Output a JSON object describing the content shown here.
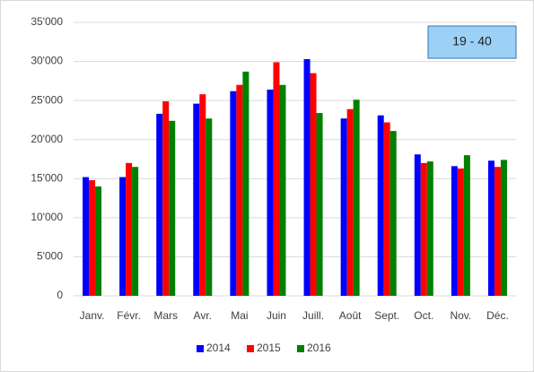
{
  "chart_data": {
    "type": "bar",
    "annotation": "19 - 40",
    "categories": [
      "Janv.",
      "Févr.",
      "Mars",
      "Avr.",
      "Mai",
      "Juin",
      "Juill.",
      "Août",
      "Sept.",
      "Oct.",
      "Nov.",
      "Déc."
    ],
    "series": [
      {
        "name": "2014",
        "color": "#0000ff",
        "values": [
          15200,
          15200,
          23300,
          24600,
          26200,
          26400,
          30300,
          22700,
          23100,
          18100,
          16600,
          17300
        ]
      },
      {
        "name": "2015",
        "color": "#ff0000",
        "values": [
          14800,
          17000,
          24900,
          25800,
          27000,
          29900,
          28500,
          23900,
          22200,
          17000,
          16300,
          16500
        ]
      },
      {
        "name": "2016",
        "color": "#008000",
        "values": [
          14000,
          16500,
          22400,
          22700,
          28700,
          27000,
          23400,
          25100,
          21100,
          17200,
          18000,
          17400
        ]
      }
    ],
    "ylim": [
      0,
      35000
    ],
    "yticks": [
      0,
      {
        "value": 5000,
        "label": "5'000"
      },
      {
        "value": 10000,
        "label": "10'000"
      },
      {
        "value": 15000,
        "label": "15'000"
      },
      {
        "value": 20000,
        "label": "20'000"
      },
      {
        "value": 25000,
        "label": "25'000"
      },
      {
        "value": 30000,
        "label": "30'000"
      },
      {
        "value": 35000,
        "label": "35'000"
      }
    ],
    "grid": true,
    "legend": "bottom"
  }
}
